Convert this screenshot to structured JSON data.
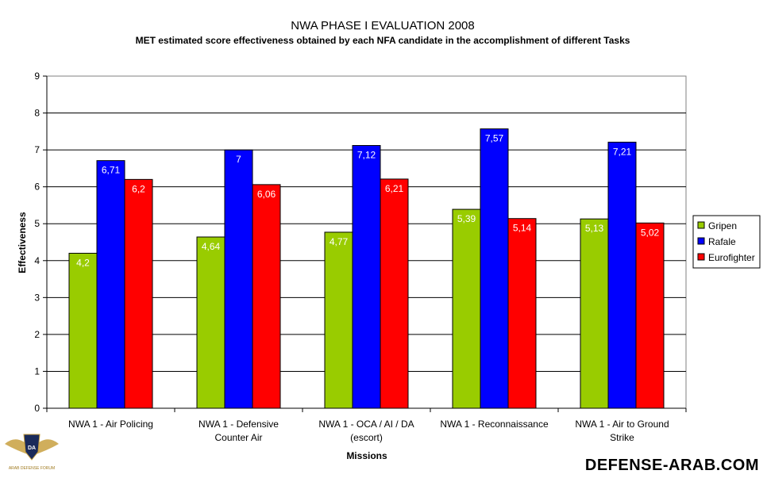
{
  "chart_data": {
    "type": "bar",
    "title": "NWA PHASE I EVALUATION 2008",
    "subtitle": "MET estimated score effectiveness obtained by each NFA candidate in the accomplishment of different Tasks",
    "xlabel": "Missions",
    "ylabel": "Effectiveness",
    "ylim": [
      0,
      9
    ],
    "yticks": [
      "0",
      "1",
      "2",
      "3",
      "4",
      "5",
      "6",
      "7",
      "8",
      "9"
    ],
    "grid": true,
    "legend_position": "right",
    "categories": [
      [
        "NWA 1 - Air Policing"
      ],
      [
        "NWA 1 - Defensive",
        "Counter Air"
      ],
      [
        "NWA 1 - OCA / AI / DA",
        "(escort)"
      ],
      [
        "NWA 1 - Reconnaissance"
      ],
      [
        "NWA 1 - Air to Ground",
        "Strike"
      ]
    ],
    "series": [
      {
        "name": "Gripen",
        "color": "#99cc00",
        "values": [
          4.2,
          4.64,
          4.77,
          5.39,
          5.13
        ],
        "labels": [
          "4,2",
          "4,64",
          "4,77",
          "5,39",
          "5,13"
        ]
      },
      {
        "name": "Rafale",
        "color": "#0000ff",
        "values": [
          6.71,
          7.0,
          7.12,
          7.57,
          7.21
        ],
        "labels": [
          "6,71",
          "7",
          "7,12",
          "7,57",
          "7,21"
        ]
      },
      {
        "name": "Eurofighter",
        "color": "#ff0000",
        "values": [
          6.2,
          6.06,
          6.21,
          5.14,
          5.02
        ],
        "labels": [
          "6,2",
          "6,06",
          "6,21",
          "5,14",
          "5,02"
        ]
      }
    ]
  },
  "watermark": {
    "site": "DEFENSE-ARAB.COM",
    "logo_text": "ARAB DEFENSE FORUM",
    "logo_initials": "DA"
  }
}
